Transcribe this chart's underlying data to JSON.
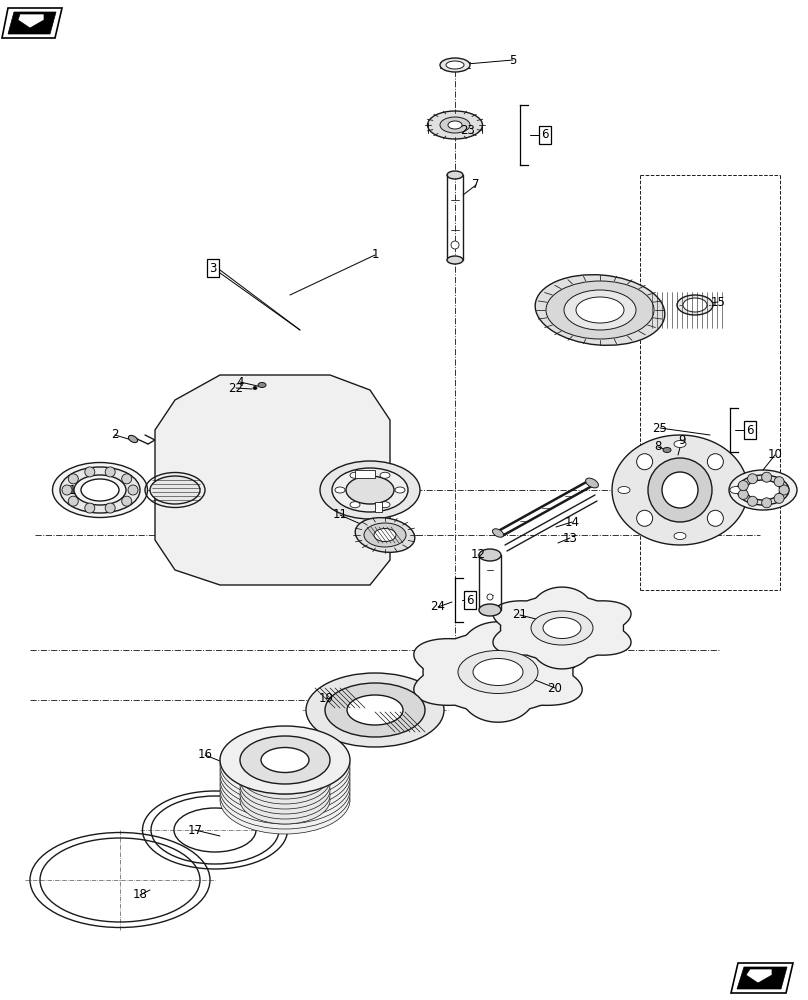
{
  "bg_color": "#ffffff",
  "lc": "#1a1a1a",
  "lw": 1.0,
  "fig_width": 8.08,
  "fig_height": 10.0,
  "dpi": 100
}
